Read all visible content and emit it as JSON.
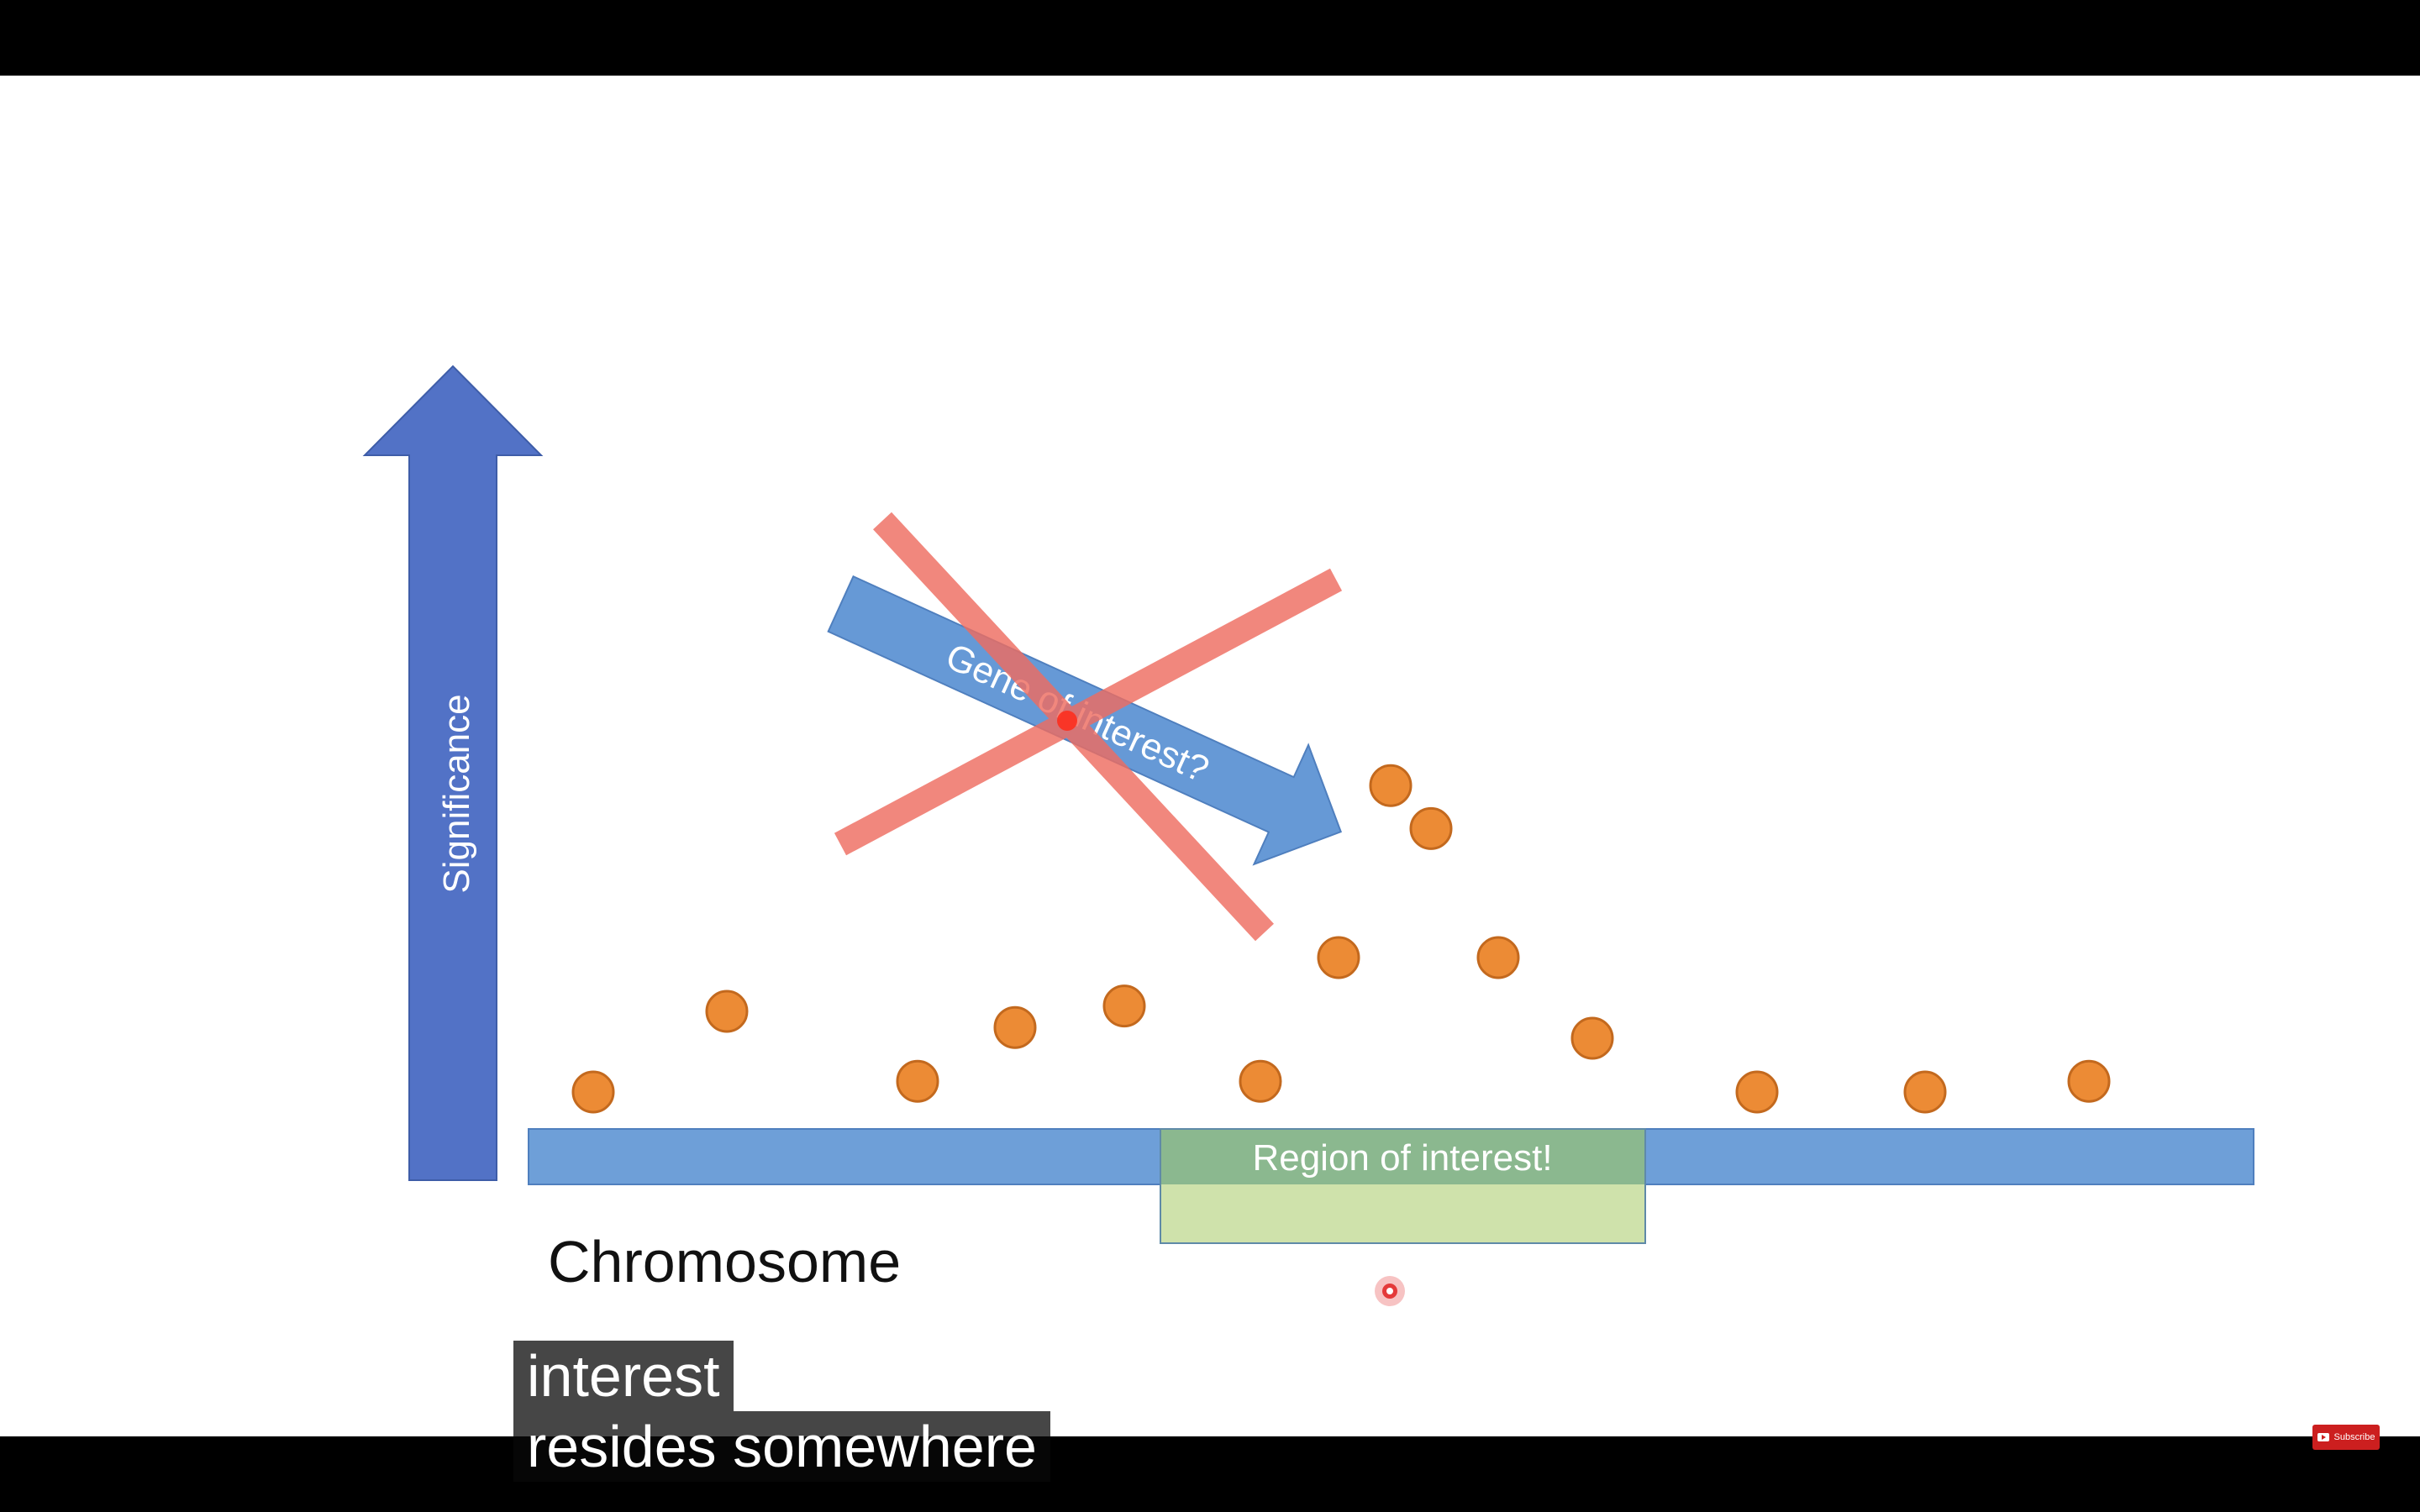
{
  "slide": {
    "axis_label": "Significance",
    "arrow_label": "Gene of interest?",
    "region_label": "Region of interest!",
    "chromosome_label": "Chromosome"
  },
  "data_points": [
    {
      "position": 1,
      "significance": 1.0
    },
    {
      "position": 2,
      "significance": 2.5
    },
    {
      "position": 3,
      "significance": 1.2
    },
    {
      "position": 4,
      "significance": 2.2
    },
    {
      "position": 5,
      "significance": 2.6
    },
    {
      "position": 6,
      "significance": 1.2
    },
    {
      "position": 7,
      "significance": 3.5
    },
    {
      "position": 8,
      "significance": 6.7
    },
    {
      "position": 9,
      "significance": 5.9
    },
    {
      "position": 10,
      "significance": 3.5
    },
    {
      "position": 11,
      "significance": 2.0
    },
    {
      "position": 12,
      "significance": 1.0
    },
    {
      "position": 13,
      "significance": 1.0
    },
    {
      "position": 14,
      "significance": 1.2
    }
  ],
  "captions": {
    "line1": "interest",
    "line2": "resides somewhere"
  },
  "subscribe": {
    "label": "Subscribe"
  },
  "colors": {
    "slide_bg": "#ffffff",
    "axis_arrow": "#4f73c6",
    "chromosome_bar": "#6e9fd8",
    "gene_arrow": "#6699d6",
    "cross": "#ee6d61",
    "point_fill": "#ec8b35",
    "point_stroke": "#c3691e",
    "region_top": "#8bb88f",
    "region_bottom": "#cfe2ab",
    "pointer": "#e43a3a"
  }
}
